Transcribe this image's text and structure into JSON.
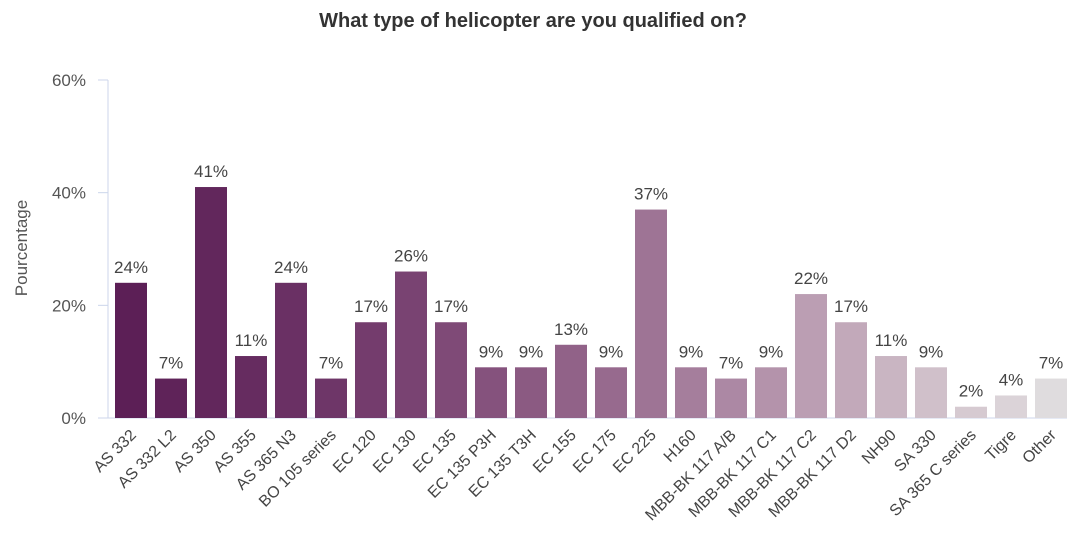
{
  "chart_data": {
    "type": "bar",
    "title": "What type of helicopter are you qualified on?",
    "xlabel": "",
    "ylabel": "Pourcentage",
    "ylim": [
      0,
      60
    ],
    "yticks": [
      "0%",
      "20%",
      "40%",
      "60%"
    ],
    "grid": false,
    "legend": "none",
    "categories": [
      "AS 332",
      "AS 332 L2",
      "AS 350",
      "AS 355",
      "AS 365 N3",
      "BO 105 series",
      "EC 120",
      "EC 130",
      "EC 135",
      "EC 135 P3H",
      "EC 135 T3H",
      "EC 155",
      "EC 175",
      "EC 225",
      "H160",
      "MBB-BK 117 A/B",
      "MBB-BK 117 C1",
      "MBB-BK 117 C2",
      "MBB-BK 117 D2",
      "NH90",
      "SA 330",
      "SA 365 C series",
      "Tigre",
      "Other"
    ],
    "values": [
      24,
      7,
      41,
      11,
      24,
      7,
      17,
      26,
      17,
      9,
      9,
      13,
      9,
      37,
      9,
      7,
      9,
      22,
      17,
      11,
      9,
      2,
      4,
      7
    ],
    "value_labels": [
      "24%",
      "7%",
      "41%",
      "11%",
      "24%",
      "7%",
      "17%",
      "26%",
      "17%",
      "9%",
      "9%",
      "13%",
      "9%",
      "37%",
      "9%",
      "7%",
      "9%",
      "22%",
      "17%",
      "11%",
      "9%",
      "2%",
      "4%",
      "7%"
    ],
    "colors": [
      "#5c1f56",
      "#5f2359",
      "#62275c",
      "#662c60",
      "#6a3064",
      "#6e3668",
      "#743c6d",
      "#794372",
      "#7f4a77",
      "#85527d",
      "#8b5a82",
      "#916288",
      "#976a8e",
      "#9e7495",
      "#a57e9c",
      "#ac88a4",
      "#b493ab",
      "#bb9eb3",
      "#c2a9ba",
      "#c9b5c2",
      "#d0c0ca",
      "#d6cad1",
      "#dbd3d8",
      "#dfdcde"
    ]
  }
}
